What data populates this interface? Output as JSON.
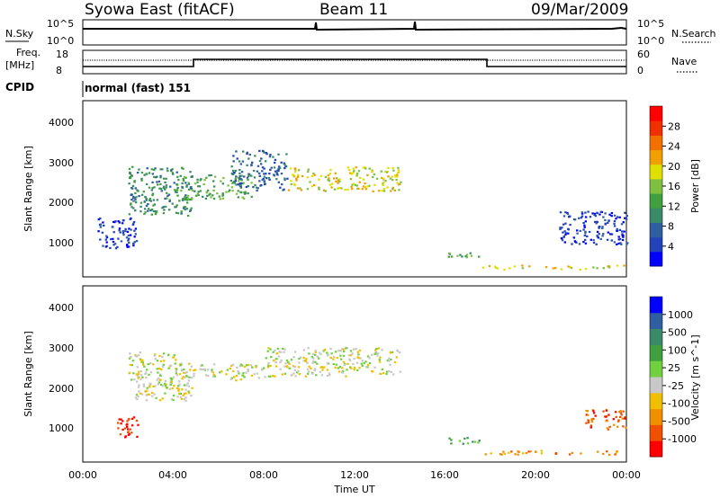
{
  "header": {
    "title": "Syowa East (fitACF)",
    "beam": "Beam 11",
    "date": "09/Mar/2009"
  },
  "top_panel": {
    "left_labels": {
      "nsky": "N.Sky",
      "freq_line1": "Freq.",
      "freq_line2": "[MHz]",
      "cpid": "CPID"
    },
    "right_labels": {
      "nsearch": "N.Search",
      "nave": "Nave"
    },
    "nsky_ticks": [
      "10^5",
      "10^0"
    ],
    "nsearch_ticks": [
      "10^5",
      "10^0"
    ],
    "freq_ticks": [
      "18",
      "8"
    ],
    "nave_ticks": [
      "60",
      "0"
    ],
    "cpid_text": "normal (fast) 151"
  },
  "chart_data": [
    {
      "type": "heatmap",
      "panel": "power",
      "ylabel": "Slant Range [km]",
      "xlabel": "Time UT",
      "xticks": [
        "00:00",
        "04:00",
        "08:00",
        "12:00",
        "16:00",
        "20:00",
        "00:00"
      ],
      "yticks": [
        "1000",
        "2000",
        "3000",
        "4000"
      ],
      "xlim_hours": [
        0,
        24
      ],
      "ylim_km": [
        180,
        4500
      ],
      "colorbar": {
        "label": "Power [dB]",
        "ticks": [
          "28",
          "24",
          "20",
          "16",
          "12",
          "8",
          "4"
        ],
        "colors": [
          "#0000ff",
          "#2244bb",
          "#2f5fa0",
          "#3a8a6a",
          "#40a040",
          "#80c040",
          "#e0e000",
          "#f0a000",
          "#f07000",
          "#f03000",
          "#ff0000"
        ]
      },
      "echo_regions": [
        {
          "t": [
            0.6,
            2.4
          ],
          "r": [
            900,
            1700
          ],
          "level": 1
        },
        {
          "t": [
            2.0,
            4.8
          ],
          "r": [
            1700,
            2900
          ],
          "level": 3
        },
        {
          "t": [
            4.0,
            7.5
          ],
          "r": [
            2100,
            2700
          ],
          "level": 4
        },
        {
          "t": [
            6.5,
            9.0
          ],
          "r": [
            2300,
            3300
          ],
          "level": 2
        },
        {
          "t": [
            9.0,
            14.0
          ],
          "r": [
            2300,
            2900
          ],
          "level": 6
        },
        {
          "t": [
            16.0,
            17.5
          ],
          "r": [
            650,
            800
          ],
          "level": 4
        },
        {
          "t": [
            17.5,
            24.0
          ],
          "r": [
            380,
            480
          ],
          "level": 6
        },
        {
          "t": [
            21.0,
            24.0
          ],
          "r": [
            1000,
            1800
          ],
          "level": 1
        }
      ]
    },
    {
      "type": "heatmap",
      "panel": "velocity",
      "ylabel": "Slant Range [km]",
      "xlabel": "Time UT",
      "xticks": [
        "00:00",
        "04:00",
        "08:00",
        "12:00",
        "16:00",
        "20:00",
        "00:00"
      ],
      "yticks": [
        "1000",
        "2000",
        "3000",
        "4000"
      ],
      "xlim_hours": [
        0,
        24
      ],
      "ylim_km": [
        180,
        4500
      ],
      "colorbar": {
        "label": "Velocity [m s^-1]",
        "ticks": [
          "1000",
          "500",
          "100",
          "25",
          "-25",
          "-100",
          "-500",
          "-1000"
        ],
        "colors": [
          "#ff0000",
          "#f05000",
          "#f09000",
          "#f0c000",
          "#c8c8c8",
          "#70d040",
          "#40a040",
          "#3a8a6a",
          "#2f5fa0",
          "#0000ff"
        ]
      },
      "echo_regions": [
        {
          "t": [
            2.0,
            4.8
          ],
          "r": [
            1700,
            2900
          ],
          "level": 4
        },
        {
          "t": [
            4.0,
            8.0
          ],
          "r": [
            2200,
            2600
          ],
          "level": 4
        },
        {
          "t": [
            8.0,
            14.0
          ],
          "r": [
            2300,
            3000
          ],
          "level": 4
        },
        {
          "t": [
            1.5,
            2.4
          ],
          "r": [
            800,
            1300
          ],
          "level": 0
        },
        {
          "t": [
            16.0,
            17.5
          ],
          "r": [
            650,
            800
          ],
          "level": 6
        },
        {
          "t": [
            17.5,
            24.0
          ],
          "r": [
            380,
            480
          ],
          "level": 2
        },
        {
          "t": [
            22.0,
            24.0
          ],
          "r": [
            1000,
            1500
          ],
          "level": 1
        }
      ]
    }
  ]
}
